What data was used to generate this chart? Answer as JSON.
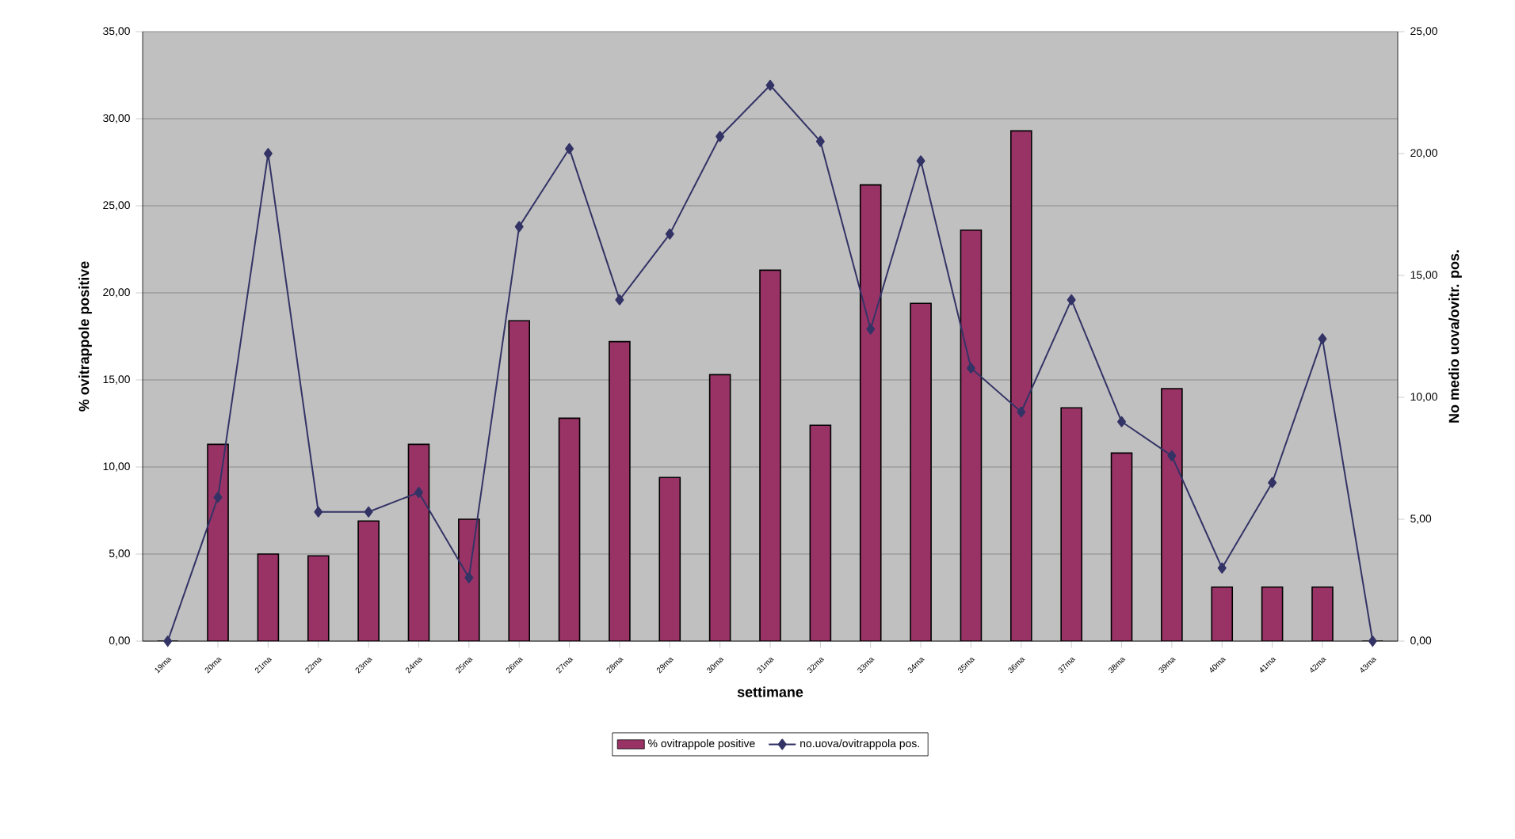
{
  "chart_data": {
    "type": "bar",
    "xlabel": "settimane",
    "ylabel": "% ovitrappole positive",
    "y2label": "No medio uova/ovitr. pos.",
    "categories": [
      "19ma",
      "20ma",
      "21ma",
      "22ma",
      "23ma",
      "24ma",
      "25ma",
      "26ma",
      "27ma",
      "28ma",
      "29ma",
      "30ma",
      "31ma",
      "32ma",
      "33ma",
      "34ma",
      "35ma",
      "36ma",
      "37ma",
      "38ma",
      "39ma",
      "40ma",
      "41ma",
      "42ma",
      "43ma"
    ],
    "series": [
      {
        "name": "% ovitrappole positive",
        "color": "#993366",
        "values": [
          0,
          11.3,
          5.0,
          4.9,
          6.9,
          11.3,
          7.0,
          18.4,
          12.8,
          17.2,
          9.4,
          15.3,
          21.3,
          12.4,
          26.2,
          19.4,
          23.6,
          29.3,
          13.4,
          10.8,
          14.5,
          3.1,
          3.1,
          3.1,
          0
        ]
      },
      {
        "name": "no.uova/ovitrappola pos.",
        "type": "line",
        "axis": "y2",
        "color": "#333366",
        "marker": "diamond",
        "values": [
          0,
          5.9,
          20.0,
          5.3,
          5.3,
          6.1,
          2.6,
          17.0,
          20.2,
          14.0,
          16.7,
          20.7,
          22.8,
          20.5,
          12.8,
          19.7,
          11.2,
          9.4,
          14.0,
          9.0,
          7.6,
          3.0,
          6.5,
          12.4,
          0
        ]
      }
    ],
    "ylim": [
      0,
      35
    ],
    "yticks": [
      {
        "value": 0,
        "label": "0,00"
      },
      {
        "value": 5,
        "label": "5,00"
      },
      {
        "value": 10,
        "label": "10,00"
      },
      {
        "value": 15,
        "label": "15,00"
      },
      {
        "value": 20,
        "label": "20,00"
      },
      {
        "value": 25,
        "label": "25,00"
      },
      {
        "value": 30,
        "label": "30,00"
      },
      {
        "value": 35,
        "label": "35,00"
      }
    ],
    "y2lim": [
      0,
      25
    ],
    "y2ticks": [
      {
        "value": 0,
        "label": "0,00"
      },
      {
        "value": 5,
        "label": "5,00"
      },
      {
        "value": 10,
        "label": "10,00"
      },
      {
        "value": 15,
        "label": "15,00"
      },
      {
        "value": 20,
        "label": "20,00"
      },
      {
        "value": 25,
        "label": "25,00"
      }
    ],
    "grid": "y",
    "legend": "bottom"
  }
}
